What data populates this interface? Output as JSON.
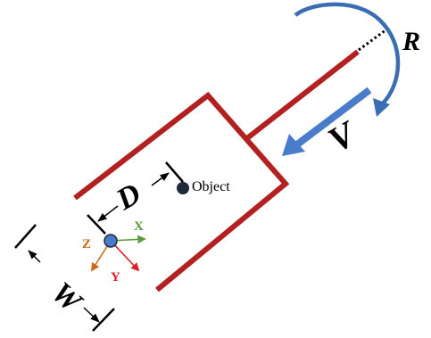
{
  "labels": {
    "rotation": "R",
    "velocity": "V",
    "distance": "D",
    "width": "W",
    "object": "Object"
  },
  "axes": {
    "x": "X",
    "y": "Y",
    "z": "Z"
  },
  "colors": {
    "gripper": "#b22020",
    "arc_arrow": "#3b6db3",
    "velocity_arrow": "#4a7ccc",
    "axis_x": "#5a9a3a",
    "axis_y": "#e02020",
    "axis_z": "#cc6a1a",
    "origin_dot": "#4a7ccc",
    "object_dot": "#1e2a3a",
    "ink": "#000000"
  }
}
